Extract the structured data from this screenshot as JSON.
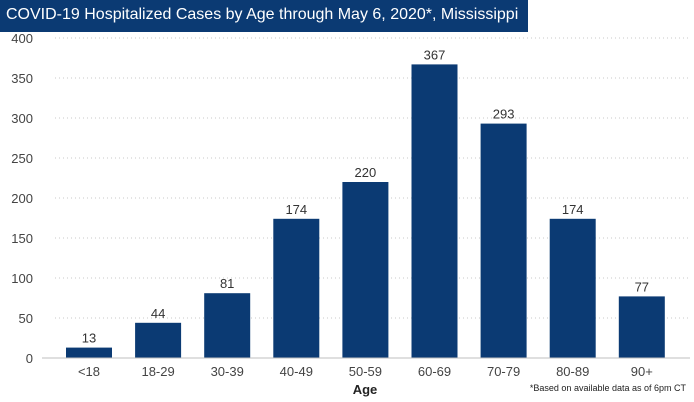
{
  "title_color": "#0b3a73",
  "bar_color": "#0b3a73",
  "chart_data": {
    "type": "bar",
    "title": "COVID-19 Hospitalized Cases by Age through May 6, 2020*, Mississippi",
    "xlabel": "Age",
    "ylabel": "",
    "categories": [
      "<18",
      "18-29",
      "30-39",
      "40-49",
      "50-59",
      "60-69",
      "70-79",
      "80-89",
      "90+"
    ],
    "values": [
      13,
      44,
      81,
      174,
      220,
      367,
      293,
      174,
      77
    ],
    "ylim": [
      0,
      400
    ],
    "yticks": [
      0,
      50,
      100,
      150,
      200,
      250,
      300,
      350,
      400
    ],
    "grid": true,
    "data_labels": true
  },
  "footnote": "*Based on available data as of 6pm CT"
}
